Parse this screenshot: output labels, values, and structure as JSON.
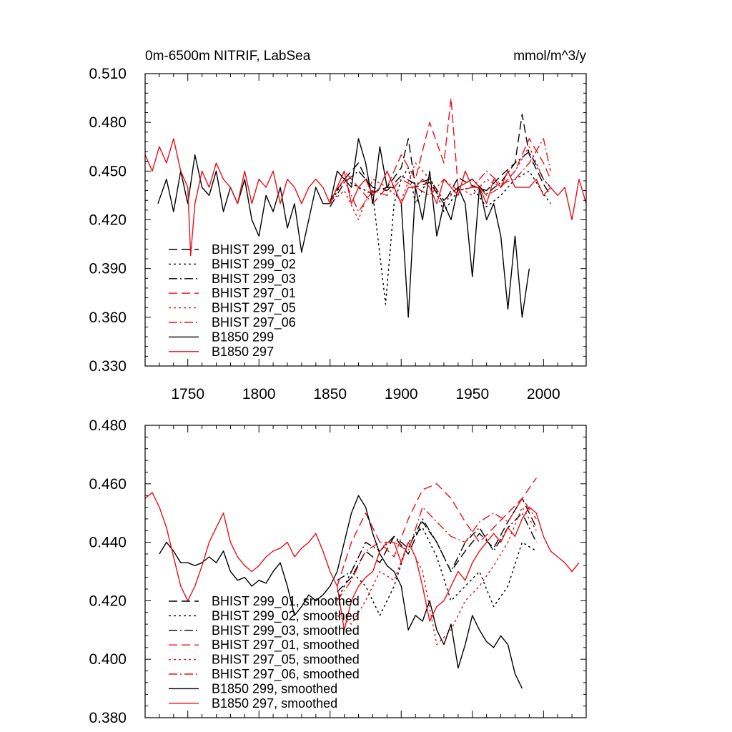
{
  "chart_data": [
    {
      "type": "line",
      "title": "0m-6500m NITRIF, LabSea",
      "units": "mmol/m^3/y",
      "xlim": [
        1720,
        2030
      ],
      "ylim": [
        0.33,
        0.51
      ],
      "x_ticks": [
        1750,
        1800,
        1850,
        1900,
        1950,
        2000
      ],
      "x_tick_labels": [
        "1750",
        "1800",
        "1850",
        "1900",
        "1950",
        "2000"
      ],
      "y_ticks": [
        0.33,
        0.36,
        0.39,
        0.42,
        0.45,
        0.48,
        0.51
      ],
      "y_tick_labels": [
        "0.330",
        "0.360",
        "0.390",
        "0.420",
        "0.450",
        "0.480",
        "0.510"
      ],
      "legend_position": "bottom-left",
      "series": [
        {
          "name": "BHIST 299_01",
          "color": "#000000",
          "dash": "dash",
          "x": [
            1850,
            1860,
            1870,
            1880,
            1890,
            1900,
            1905,
            1910,
            1920,
            1930,
            1940,
            1950,
            1960,
            1970,
            1980,
            1985,
            1990,
            2000,
            2005
          ],
          "y": [
            0.432,
            0.445,
            0.455,
            0.437,
            0.44,
            0.452,
            0.47,
            0.44,
            0.443,
            0.43,
            0.446,
            0.441,
            0.438,
            0.447,
            0.455,
            0.485,
            0.46,
            0.442,
            0.435
          ]
        },
        {
          "name": "BHIST 299_02",
          "color": "#000000",
          "dash": "dot",
          "x": [
            1850,
            1860,
            1870,
            1880,
            1889,
            1895,
            1900,
            1905,
            1910,
            1920,
            1930,
            1940,
            1950,
            1960,
            1970,
            1980,
            1990,
            2000,
            2005
          ],
          "y": [
            0.43,
            0.445,
            0.44,
            0.436,
            0.368,
            0.43,
            0.445,
            0.452,
            0.43,
            0.447,
            0.425,
            0.438,
            0.44,
            0.428,
            0.435,
            0.445,
            0.45,
            0.436,
            0.43
          ]
        },
        {
          "name": "BHIST 299_03",
          "color": "#000000",
          "dash": "dashdot",
          "x": [
            1850,
            1860,
            1870,
            1880,
            1890,
            1900,
            1910,
            1920,
            1930,
            1940,
            1950,
            1960,
            1970,
            1980,
            1990,
            2000,
            2005
          ],
          "y": [
            0.428,
            0.443,
            0.45,
            0.44,
            0.438,
            0.447,
            0.442,
            0.445,
            0.432,
            0.44,
            0.445,
            0.436,
            0.443,
            0.455,
            0.462,
            0.445,
            0.44
          ]
        },
        {
          "name": "BHIST 297_01",
          "color": "#e8101a",
          "dash": "dash",
          "x": [
            1850,
            1860,
            1870,
            1880,
            1890,
            1900,
            1910,
            1920,
            1930,
            1935,
            1940,
            1950,
            1960,
            1970,
            1980,
            1990,
            2000,
            2005
          ],
          "y": [
            0.43,
            0.45,
            0.44,
            0.43,
            0.44,
            0.46,
            0.445,
            0.48,
            0.455,
            0.495,
            0.44,
            0.445,
            0.435,
            0.44,
            0.45,
            0.47,
            0.455,
            0.445
          ]
        },
        {
          "name": "BHIST 297_05",
          "color": "#e8101a",
          "dash": "dot",
          "x": [
            1850,
            1860,
            1870,
            1880,
            1890,
            1900,
            1910,
            1920,
            1930,
            1940,
            1950,
            1960,
            1970,
            1980,
            1990,
            2000,
            2005
          ],
          "y": [
            0.43,
            0.438,
            0.42,
            0.445,
            0.44,
            0.432,
            0.455,
            0.445,
            0.43,
            0.44,
            0.435,
            0.445,
            0.44,
            0.45,
            0.465,
            0.445,
            0.44
          ]
        },
        {
          "name": "BHIST 297_06",
          "color": "#e8101a",
          "dash": "dashdot",
          "x": [
            1850,
            1860,
            1870,
            1880,
            1890,
            1900,
            1910,
            1920,
            1930,
            1940,
            1950,
            1960,
            1970,
            1980,
            1990,
            2000,
            2005
          ],
          "y": [
            0.432,
            0.445,
            0.425,
            0.438,
            0.435,
            0.445,
            0.44,
            0.435,
            0.445,
            0.438,
            0.44,
            0.45,
            0.442,
            0.445,
            0.455,
            0.47,
            0.45
          ]
        },
        {
          "name": "B1850 299",
          "color": "#000000",
          "dash": "solid",
          "x": [
            1729,
            1735,
            1740,
            1745,
            1750,
            1755,
            1760,
            1765,
            1770,
            1775,
            1780,
            1785,
            1790,
            1795,
            1800,
            1805,
            1810,
            1815,
            1820,
            1825,
            1830,
            1835,
            1840,
            1845,
            1850,
            1855,
            1860,
            1865,
            1870,
            1875,
            1880,
            1885,
            1890,
            1895,
            1900,
            1905,
            1910,
            1915,
            1920,
            1925,
            1930,
            1935,
            1940,
            1945,
            1950,
            1955,
            1960,
            1965,
            1970,
            1975,
            1980,
            1985,
            1990
          ],
          "y": [
            0.43,
            0.445,
            0.425,
            0.45,
            0.43,
            0.46,
            0.44,
            0.435,
            0.45,
            0.425,
            0.44,
            0.43,
            0.445,
            0.42,
            0.41,
            0.435,
            0.425,
            0.44,
            0.415,
            0.43,
            0.4,
            0.42,
            0.44,
            0.43,
            0.43,
            0.45,
            0.445,
            0.44,
            0.47,
            0.455,
            0.43,
            0.465,
            0.44,
            0.44,
            0.43,
            0.36,
            0.44,
            0.42,
            0.45,
            0.41,
            0.43,
            0.42,
            0.44,
            0.43,
            0.385,
            0.44,
            0.42,
            0.43,
            0.41,
            0.365,
            0.41,
            0.36,
            0.39
          ]
        },
        {
          "name": "B1850 297",
          "color": "#e8101a",
          "dash": "solid",
          "x": [
            1720,
            1725,
            1730,
            1735,
            1740,
            1745,
            1750,
            1752,
            1755,
            1760,
            1765,
            1770,
            1775,
            1780,
            1785,
            1790,
            1795,
            1800,
            1805,
            1810,
            1815,
            1820,
            1825,
            1830,
            1835,
            1840,
            1845,
            1850,
            1855,
            1860,
            1865,
            1870,
            1875,
            1880,
            1885,
            1890,
            1895,
            1900,
            1905,
            1910,
            1915,
            1920,
            1925,
            1930,
            1935,
            1940,
            1945,
            1950,
            1955,
            1960,
            1965,
            1970,
            1975,
            1980,
            1985,
            1990,
            1995,
            2000,
            2005,
            2010,
            2015,
            2020,
            2025,
            2030
          ],
          "y": [
            0.46,
            0.45,
            0.465,
            0.455,
            0.47,
            0.45,
            0.44,
            0.398,
            0.43,
            0.45,
            0.44,
            0.455,
            0.445,
            0.44,
            0.43,
            0.45,
            0.43,
            0.445,
            0.44,
            0.45,
            0.43,
            0.445,
            0.44,
            0.43,
            0.44,
            0.445,
            0.44,
            0.43,
            0.44,
            0.45,
            0.43,
            0.44,
            0.445,
            0.435,
            0.44,
            0.45,
            0.44,
            0.43,
            0.44,
            0.44,
            0.445,
            0.44,
            0.43,
            0.445,
            0.44,
            0.435,
            0.45,
            0.44,
            0.44,
            0.43,
            0.445,
            0.44,
            0.45,
            0.44,
            0.44,
            0.44,
            0.445,
            0.435,
            0.44,
            0.435,
            0.44,
            0.42,
            0.445,
            0.43
          ]
        }
      ]
    },
    {
      "type": "line",
      "xlim": [
        1720,
        2030
      ],
      "ylim": [
        0.38,
        0.48
      ],
      "x_ticks": [
        1750,
        1800,
        1850,
        1900,
        1950,
        2000
      ],
      "y_ticks": [
        0.38,
        0.4,
        0.42,
        0.44,
        0.46,
        0.48
      ],
      "y_tick_labels": [
        "0.380",
        "0.400",
        "0.420",
        "0.440",
        "0.460",
        "0.480"
      ],
      "legend_position": "bottom-left",
      "series": [
        {
          "name": "BHIST 299_01, smoothed",
          "color": "#000000",
          "dash": "dash",
          "x": [
            1855,
            1865,
            1875,
            1885,
            1895,
            1905,
            1915,
            1925,
            1935,
            1945,
            1955,
            1965,
            1975,
            1985,
            1995
          ],
          "y": [
            0.423,
            0.428,
            0.437,
            0.433,
            0.442,
            0.436,
            0.447,
            0.44,
            0.43,
            0.437,
            0.443,
            0.438,
            0.447,
            0.455,
            0.445
          ]
        },
        {
          "name": "BHIST 299_02, smoothed",
          "color": "#000000",
          "dash": "dot",
          "x": [
            1855,
            1865,
            1875,
            1885,
            1895,
            1905,
            1915,
            1925,
            1935,
            1945,
            1955,
            1965,
            1975,
            1985,
            1995
          ],
          "y": [
            0.42,
            0.43,
            0.425,
            0.415,
            0.425,
            0.44,
            0.445,
            0.435,
            0.42,
            0.425,
            0.43,
            0.418,
            0.425,
            0.44,
            0.437
          ]
        },
        {
          "name": "BHIST 299_03, smoothed",
          "color": "#000000",
          "dash": "dashdot",
          "x": [
            1855,
            1865,
            1875,
            1885,
            1895,
            1905,
            1915,
            1925,
            1935,
            1945,
            1955,
            1965,
            1975,
            1985,
            1995
          ],
          "y": [
            0.427,
            0.43,
            0.44,
            0.437,
            0.442,
            0.438,
            0.448,
            0.44,
            0.43,
            0.44,
            0.445,
            0.437,
            0.445,
            0.45,
            0.44
          ]
        },
        {
          "name": "BHIST 297_01, smoothed",
          "color": "#e8101a",
          "dash": "dash",
          "x": [
            1855,
            1865,
            1875,
            1885,
            1895,
            1905,
            1915,
            1925,
            1935,
            1945,
            1955,
            1965,
            1975,
            1985,
            1995
          ],
          "y": [
            0.425,
            0.44,
            0.45,
            0.44,
            0.435,
            0.448,
            0.458,
            0.46,
            0.455,
            0.447,
            0.44,
            0.445,
            0.45,
            0.455,
            0.462
          ]
        },
        {
          "name": "BHIST 297_05, smoothed",
          "color": "#e8101a",
          "dash": "dot",
          "x": [
            1855,
            1865,
            1875,
            1885,
            1895,
            1905,
            1915,
            1925,
            1935,
            1945,
            1955,
            1965,
            1975,
            1985,
            1995
          ],
          "y": [
            0.415,
            0.412,
            0.42,
            0.43,
            0.427,
            0.44,
            0.43,
            0.405,
            0.41,
            0.42,
            0.425,
            0.432,
            0.44,
            0.452,
            0.444
          ]
        },
        {
          "name": "BHIST 297_06, smoothed",
          "color": "#e8101a",
          "dash": "dashdot",
          "x": [
            1855,
            1865,
            1875,
            1885,
            1895,
            1905,
            1915,
            1925,
            1935,
            1945,
            1955,
            1965,
            1975,
            1985,
            1995
          ],
          "y": [
            0.42,
            0.427,
            0.437,
            0.44,
            0.44,
            0.437,
            0.452,
            0.447,
            0.442,
            0.44,
            0.447,
            0.45,
            0.447,
            0.455,
            0.448
          ]
        },
        {
          "name": "B1850 299, smoothed",
          "color": "#000000",
          "dash": "solid",
          "x": [
            1730,
            1735,
            1740,
            1745,
            1750,
            1755,
            1760,
            1765,
            1770,
            1775,
            1780,
            1785,
            1790,
            1795,
            1800,
            1805,
            1810,
            1815,
            1820,
            1825,
            1830,
            1835,
            1840,
            1845,
            1850,
            1855,
            1860,
            1865,
            1870,
            1875,
            1880,
            1885,
            1890,
            1895,
            1900,
            1905,
            1910,
            1915,
            1920,
            1925,
            1930,
            1935,
            1940,
            1945,
            1950,
            1955,
            1960,
            1965,
            1970,
            1975,
            1980,
            1985
          ],
          "y": [
            0.436,
            0.44,
            0.437,
            0.433,
            0.433,
            0.432,
            0.433,
            0.435,
            0.433,
            0.437,
            0.43,
            0.427,
            0.428,
            0.425,
            0.427,
            0.426,
            0.43,
            0.433,
            0.425,
            0.415,
            0.418,
            0.422,
            0.42,
            0.422,
            0.425,
            0.43,
            0.44,
            0.45,
            0.456,
            0.452,
            0.443,
            0.436,
            0.432,
            0.43,
            0.425,
            0.41,
            0.415,
            0.413,
            0.42,
            0.41,
            0.405,
            0.412,
            0.397,
            0.405,
            0.415,
            0.41,
            0.406,
            0.404,
            0.408,
            0.405,
            0.395,
            0.39
          ]
        },
        {
          "name": "B1850 297, smoothed",
          "color": "#e8101a",
          "dash": "solid",
          "x": [
            1720,
            1725,
            1730,
            1735,
            1740,
            1745,
            1750,
            1755,
            1760,
            1765,
            1770,
            1775,
            1780,
            1785,
            1790,
            1795,
            1800,
            1805,
            1810,
            1815,
            1820,
            1825,
            1830,
            1835,
            1840,
            1845,
            1850,
            1855,
            1860,
            1865,
            1870,
            1875,
            1880,
            1885,
            1890,
            1895,
            1900,
            1905,
            1910,
            1915,
            1920,
            1925,
            1930,
            1935,
            1940,
            1945,
            1950,
            1955,
            1960,
            1965,
            1970,
            1975,
            1980,
            1985,
            1990,
            1995,
            2000,
            2005,
            2010,
            2015,
            2020,
            2025
          ],
          "y": [
            0.455,
            0.457,
            0.452,
            0.445,
            0.435,
            0.425,
            0.42,
            0.425,
            0.432,
            0.44,
            0.445,
            0.45,
            0.44,
            0.435,
            0.432,
            0.43,
            0.432,
            0.435,
            0.437,
            0.438,
            0.44,
            0.435,
            0.438,
            0.44,
            0.443,
            0.437,
            0.43,
            0.425,
            0.41,
            0.42,
            0.425,
            0.428,
            0.43,
            0.437,
            0.44,
            0.44,
            0.433,
            0.44,
            0.435,
            0.425,
            0.413,
            0.418,
            0.42,
            0.425,
            0.43,
            0.427,
            0.433,
            0.437,
            0.44,
            0.443,
            0.44,
            0.445,
            0.442,
            0.448,
            0.452,
            0.45,
            0.442,
            0.437,
            0.435,
            0.433,
            0.43,
            0.433
          ]
        }
      ]
    }
  ]
}
